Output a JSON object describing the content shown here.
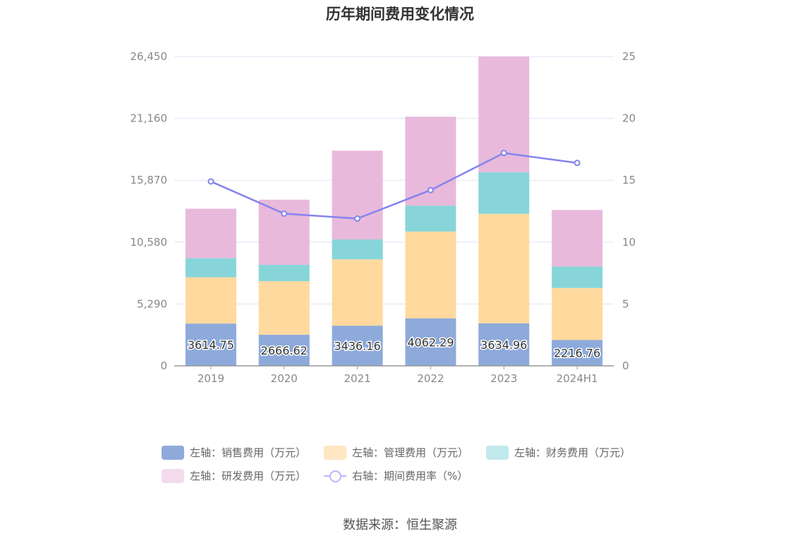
{
  "chart_data": {
    "type": "bar",
    "title": "历年期间费用变化情况",
    "categories": [
      "2019",
      "2020",
      "2021",
      "2022",
      "2023",
      "2024H1"
    ],
    "series": [
      {
        "name": "左轴：销售费用（万元）",
        "axis": "left",
        "color": "#8eaadb",
        "values": [
          3614.75,
          2666.62,
          3436.16,
          4062.29,
          3634.96,
          2216.76
        ]
      },
      {
        "name": "左轴：管理费用（万元）",
        "axis": "left",
        "color": "#ffd99e",
        "values": [
          3960,
          4570,
          5670,
          7420,
          9360,
          4440
        ]
      },
      {
        "name": "左轴：财务费用（万元）",
        "axis": "left",
        "color": "#87d5d9",
        "values": [
          1630,
          1400,
          1700,
          2220,
          3560,
          1840
        ]
      },
      {
        "name": "左轴：研发费用（万元）",
        "axis": "left",
        "color": "#e8b9db",
        "values": [
          4230,
          5570,
          7590,
          7600,
          9890,
          4830
        ]
      },
      {
        "name": "右轴：期间费用率（%）",
        "axis": "right",
        "type": "line",
        "color": "#8484ee",
        "values": [
          14.9,
          12.3,
          11.9,
          14.2,
          17.2,
          16.4
        ]
      }
    ],
    "left_axis": {
      "min": 0,
      "max": 26450,
      "ticks": [
        "0",
        "5,290",
        "10,580",
        "15,870",
        "21,160",
        "26,450"
      ]
    },
    "right_axis": {
      "min": 0,
      "max": 25,
      "ticks": [
        "0",
        "5",
        "10",
        "15",
        "20",
        "25"
      ]
    },
    "bar_labels": [
      "3614.75",
      "2666.62",
      "3436.16",
      "4062.29",
      "3634.96",
      "2216.76"
    ],
    "legend_position": "bottom",
    "grid": true
  },
  "legend": {
    "items": [
      {
        "label": "左轴：销售费用（万元）",
        "color": "#8eaadb",
        "kind": "bar"
      },
      {
        "label": "左轴：管理费用（万元）",
        "color": "#ffe7c4",
        "kind": "bar"
      },
      {
        "label": "左轴：财务费用（万元）",
        "color": "#c1eaec",
        "kind": "bar"
      },
      {
        "label": "左轴：研发费用（万元）",
        "color": "#f3dbed",
        "kind": "bar"
      },
      {
        "label": "右轴：期间费用率（%）",
        "color": "#b9b9f5",
        "kind": "line"
      }
    ]
  },
  "source": "数据来源：恒生聚源"
}
